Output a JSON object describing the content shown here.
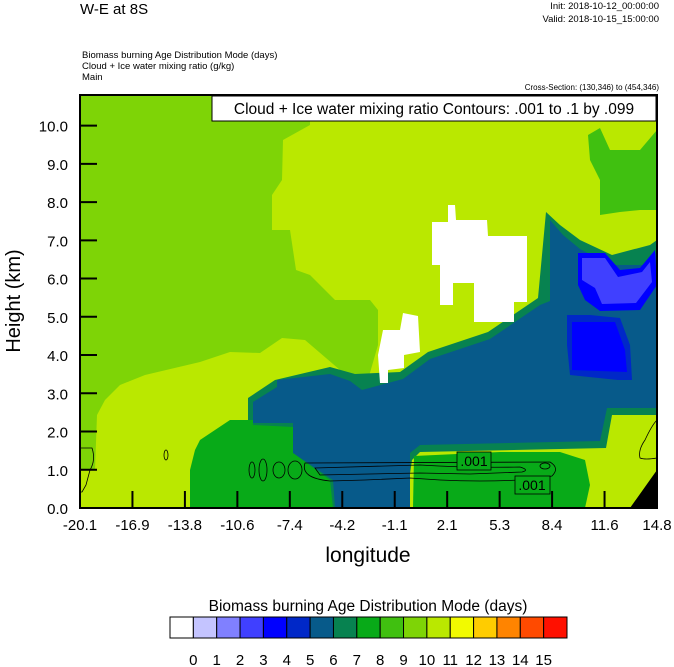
{
  "header": {
    "title": "W-E at 8S",
    "init": "Init: 2018-10-12_00:00:00",
    "valid": "Valid: 2018-10-15_15:00:00",
    "fields": [
      "Biomass burning Age Distribution Mode   (days)",
      "Cloud + Ice water mixing ratio   (g/kg)",
      "Main"
    ],
    "cross_section": "Cross-Section: (130,346) to (454,346)"
  },
  "chart_data": {
    "type": "heatmap",
    "title": "W-E at 8S",
    "overlay_label": "Cloud + Ice water mixing ratio Contours: .001 to .1 by .099",
    "xlabel": "longitude",
    "ylabel": "Height (km)",
    "xlim": [
      -20.1,
      14.8
    ],
    "ylim": [
      0.0,
      10.8
    ],
    "x_ticks": [
      "-20.1",
      "-16.9",
      "-13.8",
      "-10.6",
      "-7.4",
      "-4.2",
      "-1.1",
      "2.1",
      "5.3",
      "8.4",
      "11.6",
      "14.8"
    ],
    "y_ticks": [
      "0.0",
      "1.0",
      "2.0",
      "3.0",
      "4.0",
      "5.0",
      "6.0",
      "7.0",
      "8.0",
      "9.0",
      "10.0"
    ],
    "contour_labels": [
      ".001",
      ".001"
    ],
    "colorbar": {
      "title": "Biomass burning Age Distribution Mode  (days)",
      "levels": [
        "0",
        "1",
        "2",
        "3",
        "4",
        "5",
        "6",
        "7",
        "8",
        "9",
        "10",
        "11",
        "12",
        "13",
        "14",
        "15"
      ],
      "colors": [
        "#ffffff",
        "#c4c4ff",
        "#8080ff",
        "#4040ff",
        "#0000ff",
        "#0028c8",
        "#075a8a",
        "#078250",
        "#08aa18",
        "#40c010",
        "#7ed406",
        "#bae800",
        "#f2fa00",
        "#ffcc00",
        "#ff8400",
        "#ff4a00",
        "#ff1000"
      ]
    }
  }
}
